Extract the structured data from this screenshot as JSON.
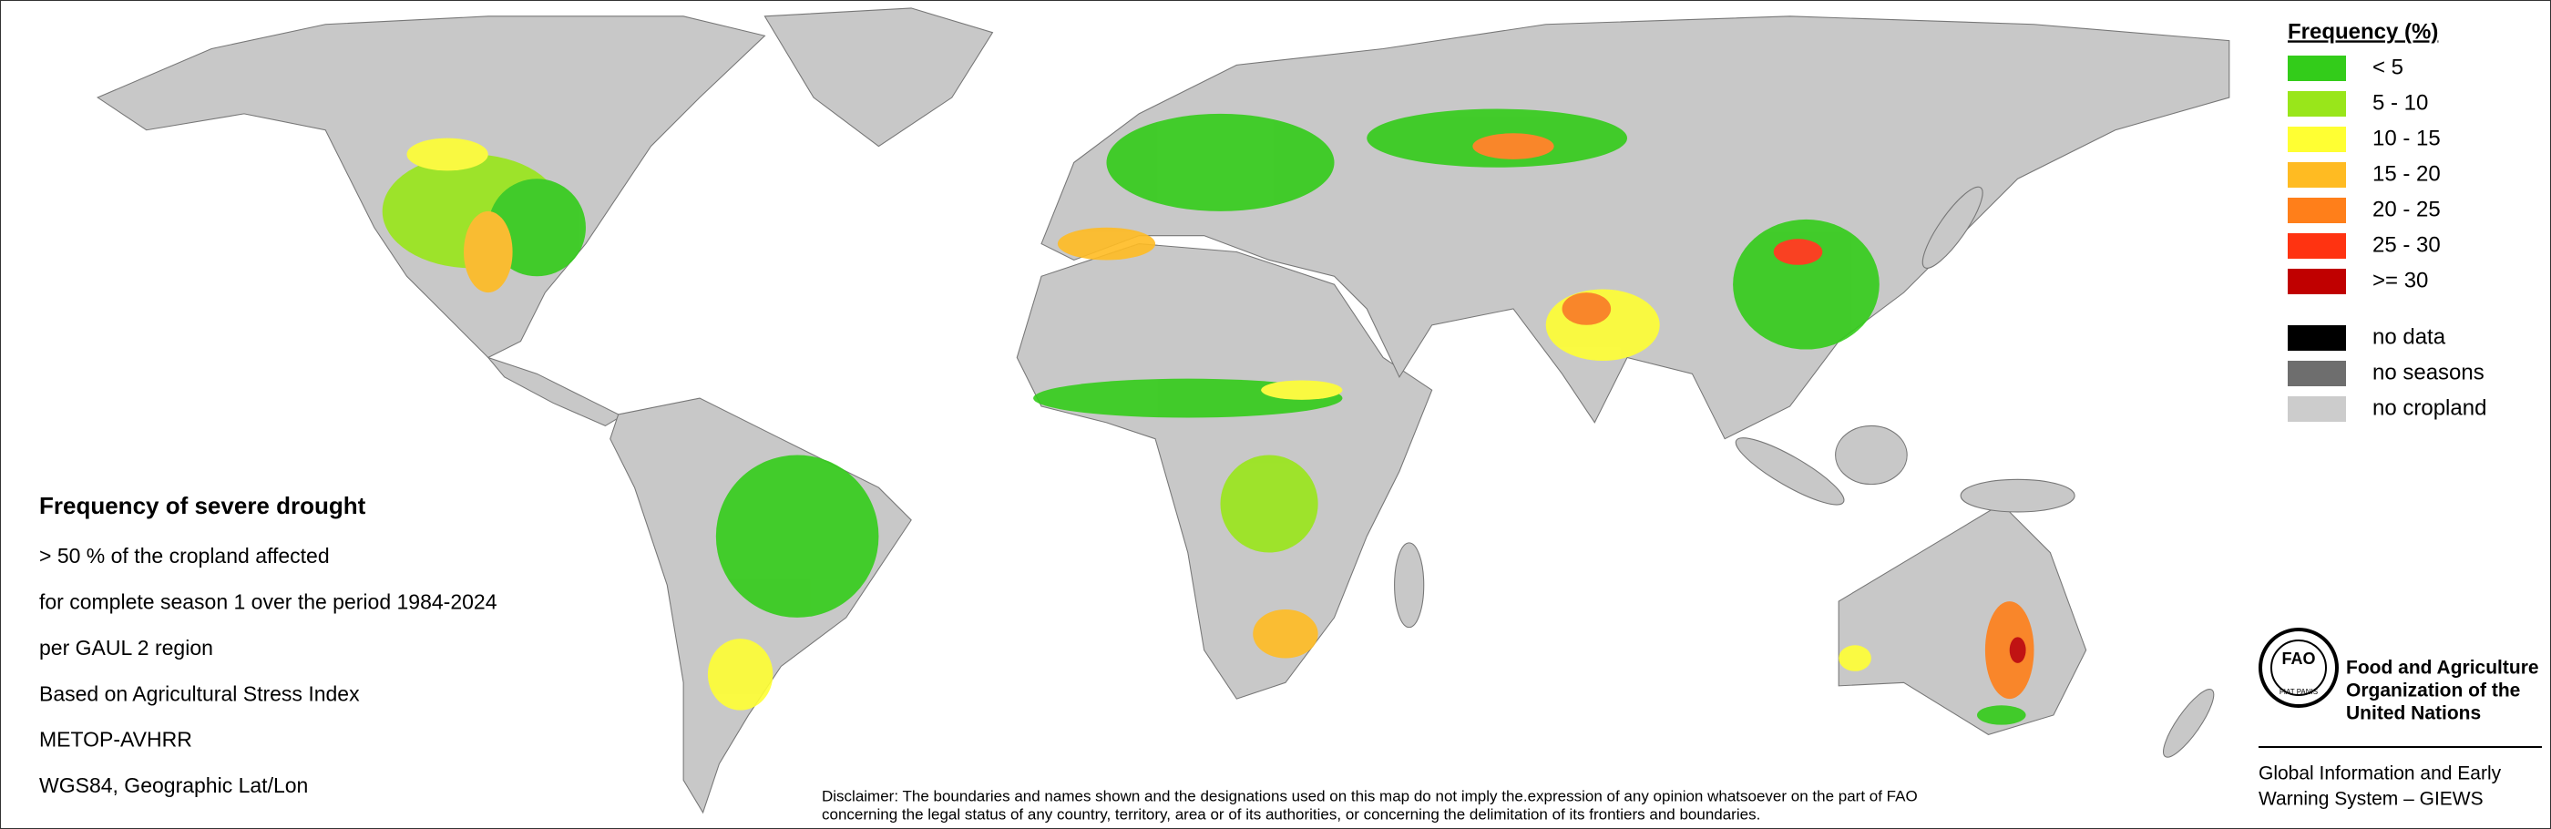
{
  "legend": {
    "title": "Frequency (%)",
    "items": [
      {
        "label": "< 5",
        "color": "#33cc1a"
      },
      {
        "label": "5 - 10",
        "color": "#99e61a"
      },
      {
        "label": "10 - 15",
        "color": "#ffff33"
      },
      {
        "label": "15 - 20",
        "color": "#ffbb22"
      },
      {
        "label": "20 - 25",
        "color": "#ff7f1a"
      },
      {
        "label": "25 - 30",
        "color": "#ff3311"
      },
      {
        "label": ">= 30",
        "color": "#c00000"
      }
    ],
    "extra": [
      {
        "label": "no data",
        "color": "#000000"
      },
      {
        "label": "no seasons",
        "color": "#6e6e6e"
      },
      {
        "label": "no cropland",
        "color": "#cccccc"
      }
    ]
  },
  "info": {
    "title": "Frequency of severe drought",
    "lines": [
      "> 50 % of the cropland affected",
      "for complete season 1 over the period 1984-2024",
      "per GAUL 2 region",
      "Based on Agricultural Stress Index",
      "METOP-AVHRR",
      "WGS84, Geographic Lat/Lon"
    ]
  },
  "disclaimer": [
    "Disclaimer: The boundaries and names shown and the designations used on this map do not imply the.expression of any opinion whatsoever on the part of FAO",
    "concerning the legal status of any country, territory, area or of its authorities, or concerning the delimitation of its frontiers and boundaries."
  ],
  "organization": {
    "logo_letters": "FAO",
    "motto": "FIAT PANIS",
    "name": [
      "Food and Agriculture",
      "Organization of the",
      "United Nations"
    ],
    "system": [
      "Global Information and Early",
      "Warning System – GIEWS"
    ]
  }
}
